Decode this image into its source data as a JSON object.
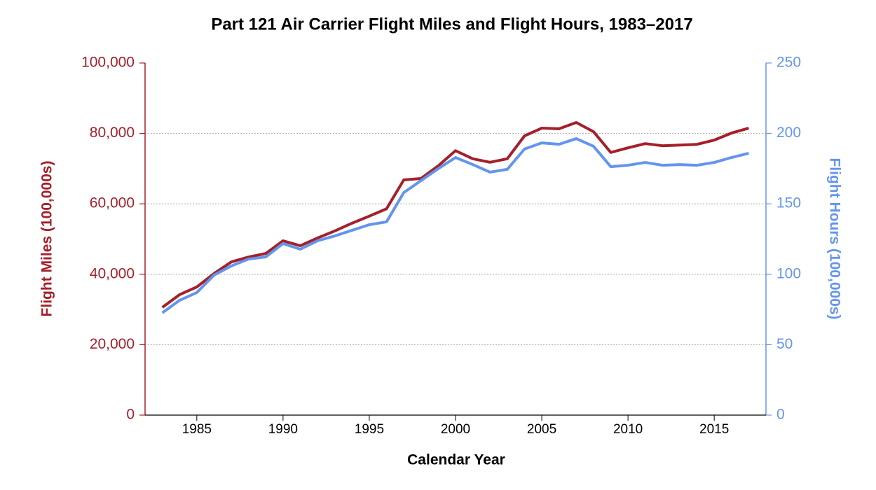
{
  "chart_data": {
    "type": "line",
    "title": "Part 121 Air Carrier Flight Miles and Flight Hours, 1983–2017",
    "x_label": "Calendar Year",
    "y_label": "Flight Miles (100,000s)",
    "y2_label": "Flight Hours (100,000s)",
    "x": [
      1983,
      1984,
      1985,
      1986,
      1987,
      1988,
      1989,
      1990,
      1991,
      1992,
      1993,
      1994,
      1995,
      1996,
      1997,
      1998,
      1999,
      2000,
      2001,
      2002,
      2003,
      2004,
      2005,
      2006,
      2007,
      2008,
      2009,
      2010,
      2011,
      2012,
      2013,
      2014,
      2015,
      2016,
      2017
    ],
    "series": [
      {
        "name": "Flight Miles",
        "color": "#a4202a",
        "axis": "y",
        "values": [
          30600,
          34200,
          36400,
          40200,
          43500,
          44900,
          45900,
          49500,
          48100,
          50300,
          52300,
          54500,
          56500,
          58600,
          66800,
          67200,
          70800,
          75100,
          72800,
          71800,
          72800,
          79300,
          81500,
          81300,
          83100,
          80500,
          74600,
          75900,
          77100,
          76500,
          76700,
          76900,
          78100,
          80100,
          81500
        ]
      },
      {
        "name": "Flight Hours",
        "color": "#6495ed",
        "axis": "y2",
        "values": [
          72.6,
          81.5,
          87,
          99.4,
          105.9,
          110.8,
          112.3,
          121.8,
          117.8,
          123.8,
          127.2,
          131.2,
          135.2,
          137.2,
          158,
          166.5,
          175,
          182.9,
          177.9,
          172.5,
          174.5,
          188.9,
          193.3,
          192.3,
          196.3,
          190.9,
          176.4,
          177.4,
          179.4,
          177.4,
          177.9,
          177.4,
          179.4,
          182.9,
          185.9
        ]
      }
    ],
    "xlim": [
      1982,
      2018
    ],
    "xticks": [
      1985,
      1990,
      1995,
      2000,
      2005,
      2010,
      2015
    ],
    "ylim": [
      0,
      100000
    ],
    "yticks": [
      0,
      {
        "value": 20000,
        "label": "20,000"
      },
      {
        "value": 40000,
        "label": "40,000"
      },
      {
        "value": 60000,
        "label": "60,000"
      },
      {
        "value": 80000,
        "label": "80,000"
      },
      {
        "value": 100000,
        "label": "100,000"
      }
    ],
    "y2lim": [
      0,
      250
    ],
    "y2ticks": [
      0,
      50,
      100,
      150,
      200,
      250
    ],
    "grid": true
  }
}
